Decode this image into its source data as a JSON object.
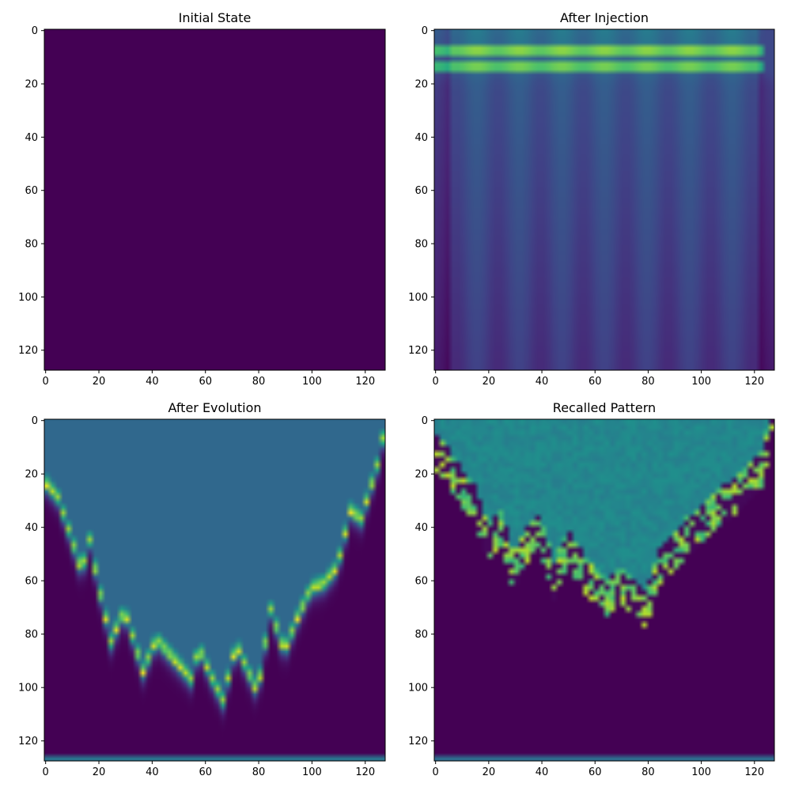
{
  "chart_data": [
    {
      "type": "heatmap",
      "title": "Initial State",
      "pattern": "uniform",
      "colormap": "viridis",
      "xlim": [
        0,
        128
      ],
      "ylim": [
        128,
        0
      ],
      "xticks": [
        0,
        20,
        40,
        60,
        80,
        100,
        120
      ],
      "yticks": [
        0,
        20,
        40,
        60,
        80,
        100,
        120
      ],
      "value_range": [
        0,
        0
      ]
    },
    {
      "type": "heatmap",
      "title": "After Injection",
      "pattern": "injection-bands",
      "colormap": "viridis",
      "xlim": [
        0,
        128
      ],
      "ylim": [
        128,
        0
      ],
      "xticks": [
        0,
        20,
        40,
        60,
        80,
        100,
        120
      ],
      "yticks": [
        0,
        20,
        40,
        60,
        80,
        100,
        120
      ],
      "bright_rows": [
        8,
        14
      ]
    },
    {
      "type": "heatmap",
      "title": "After Evolution",
      "pattern": "evolution-front",
      "colormap": "viridis",
      "xlim": [
        0,
        128
      ],
      "ylim": [
        128,
        0
      ],
      "xticks": [
        0,
        20,
        40,
        60,
        80,
        100,
        120
      ],
      "yticks": [
        0,
        20,
        40,
        60,
        80,
        100,
        120
      ],
      "front_depth": {
        "x": [
          0,
          5,
          10,
          14,
          17,
          20,
          25,
          30,
          37,
          42,
          50,
          55,
          58,
          62,
          67,
          72,
          75,
          80,
          85,
          90,
          95,
          100,
          105,
          110,
          115,
          119,
          122,
          125,
          127
        ],
        "y": [
          24,
          30,
          45,
          58,
          46,
          62,
          84,
          72,
          95,
          83,
          92,
          98,
          86,
          96,
          106,
          85,
          92,
          103,
          72,
          88,
          75,
          64,
          62,
          56,
          35,
          38,
          28,
          18,
          8
        ]
      }
    },
    {
      "type": "heatmap",
      "title": "Recalled Pattern",
      "pattern": "recalled-front",
      "colormap": "viridis",
      "xlim": [
        0,
        128
      ],
      "ylim": [
        128,
        0
      ],
      "xticks": [
        0,
        20,
        40,
        60,
        80,
        100,
        120
      ],
      "yticks": [
        0,
        20,
        40,
        60,
        80,
        100,
        120
      ],
      "front_depth": {
        "x": [
          0,
          5,
          10,
          15,
          20,
          25,
          30,
          35,
          40,
          45,
          50,
          55,
          60,
          65,
          70,
          75,
          80,
          85,
          90,
          95,
          100,
          105,
          110,
          115,
          120,
          124,
          127
        ],
        "y": [
          18,
          25,
          32,
          38,
          52,
          48,
          65,
          55,
          50,
          68,
          55,
          62,
          70,
          75,
          68,
          75,
          78,
          62,
          58,
          50,
          48,
          42,
          38,
          34,
          30,
          24,
          6
        ]
      }
    }
  ]
}
